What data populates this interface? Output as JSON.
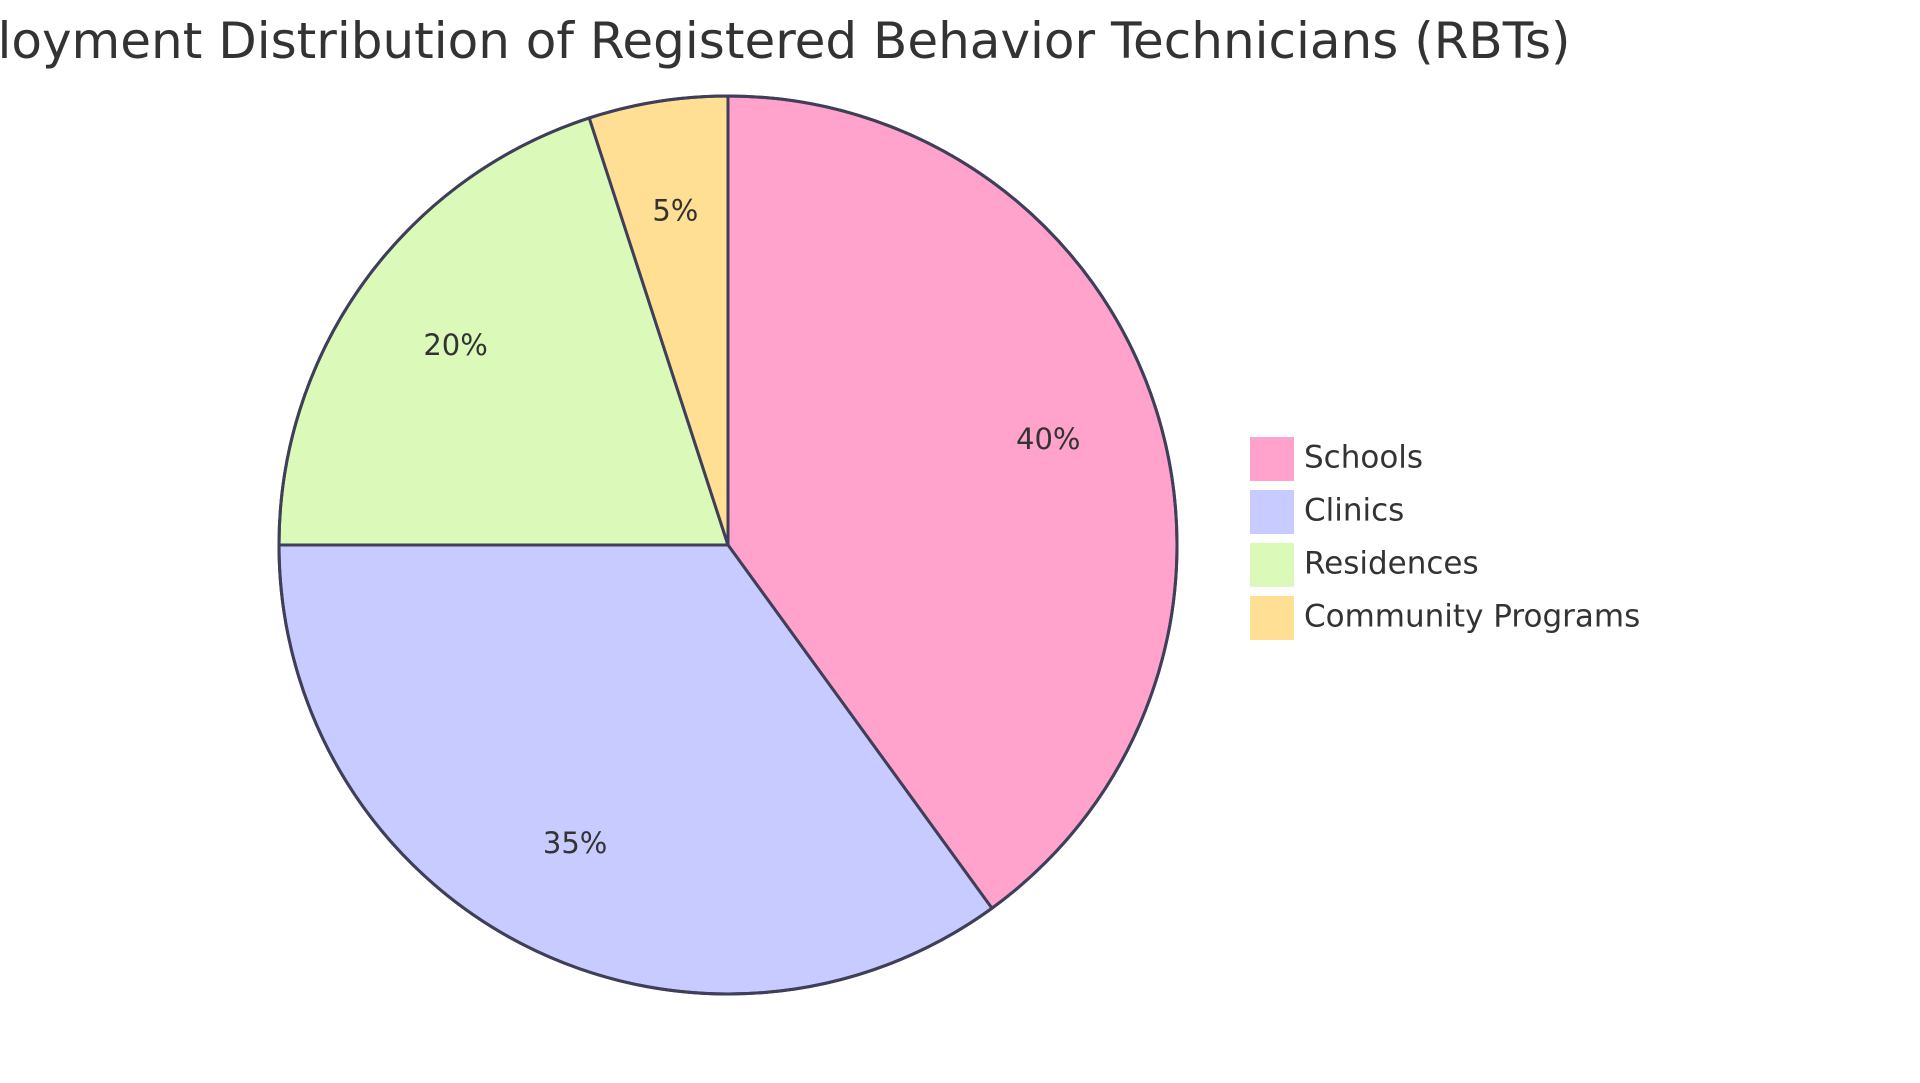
{
  "chart_data": {
    "type": "pie",
    "title": "Employment Distribution of Registered Behavior Technicians (RBTs)",
    "slices": [
      {
        "label": "Schools",
        "value": 40,
        "display": "40%",
        "color": "#FFA3CD"
      },
      {
        "label": "Clinics",
        "value": 35,
        "display": "35%",
        "color": "#C8CBFF"
      },
      {
        "label": "Residences",
        "value": 20,
        "display": "20%",
        "color": "#DBFABA"
      },
      {
        "label": "Community Programs",
        "value": 5,
        "display": "5%",
        "color": "#FFDF94"
      }
    ],
    "legend_position": "right"
  }
}
